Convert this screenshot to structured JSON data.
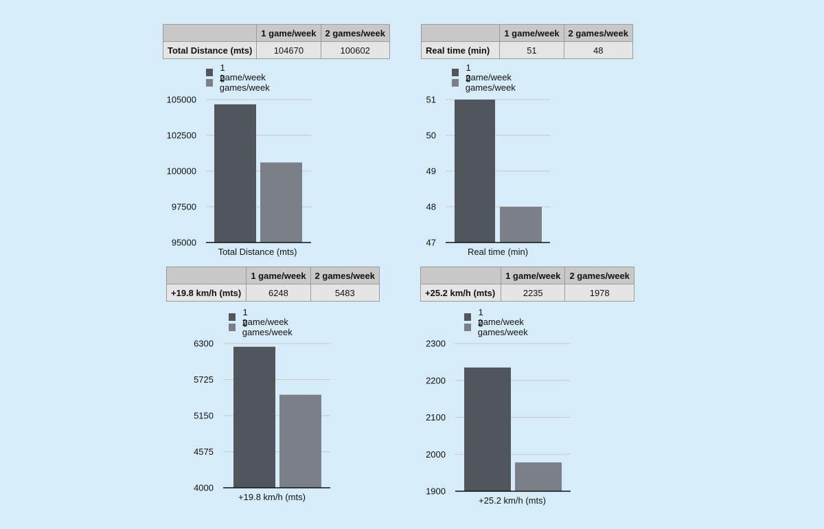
{
  "colors": {
    "series1": "#51555c",
    "series2": "#7b8088",
    "grid": "#c9c9c9",
    "axis": "#111111",
    "background": "#d6ecf9"
  },
  "panels": [
    {
      "table": {
        "headers": [
          "",
          "1 game/week",
          "2 games/week"
        ],
        "row_label": "Total Distance  (mts)",
        "values": [
          "104670",
          "100602"
        ]
      },
      "legend": [
        "1 game/week",
        "2 games/week"
      ]
    },
    {
      "table": {
        "headers": [
          "",
          "1 game/week",
          "2 games/week"
        ],
        "row_label": "Real time (min)",
        "values": [
          "51",
          "48"
        ]
      },
      "legend": [
        "1 game/week",
        "2 games/week"
      ]
    },
    {
      "table": {
        "headers": [
          "",
          "1 game/week",
          "2 games/week"
        ],
        "row_label": "+19.8 km/h (mts)",
        "values": [
          "6248",
          "5483"
        ]
      },
      "legend": [
        "1 game/week",
        "2 games/week"
      ]
    },
    {
      "table": {
        "headers": [
          "",
          "1 game/week",
          "2 games/week"
        ],
        "row_label": "+25.2 km/h (mts)",
        "values": [
          "2235",
          "1978"
        ]
      },
      "legend": [
        "1 game/week",
        "2 games/week"
      ]
    }
  ],
  "chart_data": [
    {
      "type": "bar",
      "categories": [
        "Total Distance  (mts)"
      ],
      "series": [
        {
          "name": "1 game/week",
          "values": [
            104670
          ]
        },
        {
          "name": "2 games/week",
          "values": [
            100602
          ]
        }
      ],
      "xlabel": "Total Distance  (mts)",
      "ylim": [
        95000,
        105000
      ],
      "yticks": [
        95000,
        97500,
        100000,
        102500,
        105000
      ],
      "ytick_labels": [
        "95000",
        "97500",
        "100000",
        "102500",
        "105000"
      ],
      "grid": true,
      "legend_position": "top-left"
    },
    {
      "type": "bar",
      "categories": [
        "Real time (min)"
      ],
      "series": [
        {
          "name": "1 game/week",
          "values": [
            51
          ]
        },
        {
          "name": "2 games/week",
          "values": [
            48
          ]
        }
      ],
      "xlabel": "Real time (min)",
      "ylim": [
        47,
        51
      ],
      "yticks": [
        47,
        48,
        49,
        50,
        51
      ],
      "ytick_labels": [
        "47",
        "48",
        "49",
        "50",
        "51"
      ],
      "grid": true,
      "legend_position": "top-left"
    },
    {
      "type": "bar",
      "categories": [
        "+19.8 km/h (mts)"
      ],
      "series": [
        {
          "name": "1 game/week",
          "values": [
            6248
          ]
        },
        {
          "name": "2 games/week",
          "values": [
            5483
          ]
        }
      ],
      "xlabel": "+19.8 km/h (mts)",
      "ylim": [
        4000,
        6300
      ],
      "yticks": [
        4000,
        4575,
        5150,
        5725,
        6300
      ],
      "ytick_labels": [
        "4000",
        "4575",
        "5150",
        "5725",
        "6300"
      ],
      "grid": true,
      "legend_position": "top-left"
    },
    {
      "type": "bar",
      "categories": [
        "+25.2 km/h (mts)"
      ],
      "series": [
        {
          "name": "1 game/week",
          "values": [
            2235
          ]
        },
        {
          "name": "2 games/week",
          "values": [
            1978
          ]
        }
      ],
      "xlabel": "+25.2 km/h (mts)",
      "ylim": [
        1900,
        2300
      ],
      "yticks": [
        1900,
        2000,
        2100,
        2200,
        2300
      ],
      "ytick_labels": [
        "1900",
        "2000",
        "2100",
        "2200",
        "2300"
      ],
      "grid": true,
      "legend_position": "top-left"
    }
  ]
}
